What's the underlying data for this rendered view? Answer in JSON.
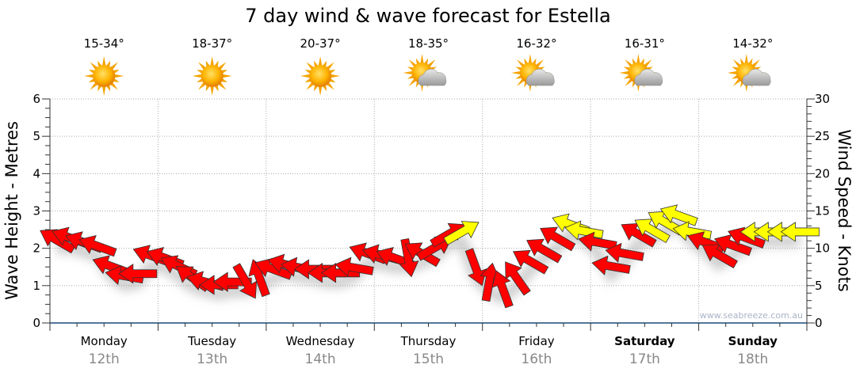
{
  "chart_data": {
    "type": "scatter",
    "title": "7 day wind & wave forecast for Estella",
    "ylabel_left": "Wave Height - Metres",
    "ylabel_right": "Wind Speed - Knots",
    "ylim_left": [
      0,
      6
    ],
    "ylim_right": [
      0,
      30
    ],
    "left_ticks": [
      "0",
      "1",
      "2",
      "3",
      "4",
      "5",
      "6"
    ],
    "right_ticks": [
      "0",
      "5",
      "10",
      "15",
      "20",
      "25",
      "30"
    ],
    "grid": true,
    "days": [
      {
        "day": "Monday",
        "date": "12th",
        "temp": "15-34°",
        "icon": "sunny-icon",
        "bold": false
      },
      {
        "day": "Tuesday",
        "date": "13th",
        "temp": "18-37°",
        "icon": "sunny-icon",
        "bold": false
      },
      {
        "day": "Wednesday",
        "date": "14th",
        "temp": "20-37°",
        "icon": "sunny-icon",
        "bold": false
      },
      {
        "day": "Thursday",
        "date": "15th",
        "temp": "18-35°",
        "icon": "partly-cloudy-icon",
        "bold": false
      },
      {
        "day": "Friday",
        "date": "16th",
        "temp": "16-32°",
        "icon": "partly-cloudy-icon",
        "bold": false
      },
      {
        "day": "Saturday",
        "date": "17th",
        "temp": "16-31°",
        "icon": "partly-cloudy-icon",
        "bold": true
      },
      {
        "day": "Sunday",
        "date": "18th",
        "temp": "14-32°",
        "icon": "partly-cloudy-icon",
        "bold": true
      }
    ],
    "wind_series": {
      "name": "Wind speed (knots) every 3 hours, arrow pointing direction in compass degrees",
      "speed_knots": [
        11.1,
        11.4,
        10.8,
        10.3,
        7.6,
        6.3,
        6.6,
        9.0,
        8.7,
        7.6,
        6.1,
        5.5,
        5.1,
        5.5,
        5.5,
        6.1,
        7.2,
        7.8,
        7.4,
        7.2,
        6.7,
        6.7,
        7.4,
        9.3,
        9.1,
        8.7,
        8.7,
        9.3,
        10.1,
        11.9,
        12.2,
        7.4,
        5.5,
        4.6,
        6.1,
        8.3,
        9.8,
        11.4,
        13.2,
        12.3,
        10.8,
        7.6,
        9.3,
        11.9,
        12.5,
        13.5,
        14.4,
        12.2,
        10.8,
        9.1,
        10.4,
        11.4,
        12.2,
        12.2,
        12.2,
        12.2
      ],
      "direction_deg": [
        300,
        290,
        290,
        290,
        290,
        280,
        270,
        290,
        290,
        295,
        305,
        285,
        270,
        270,
        150,
        340,
        290,
        285,
        280,
        270,
        270,
        270,
        280,
        290,
        285,
        290,
        170,
        300,
        60,
        60,
        60,
        160,
        10,
        340,
        325,
        300,
        300,
        300,
        290,
        280,
        280,
        280,
        280,
        300,
        300,
        300,
        290,
        280,
        290,
        300,
        290,
        290,
        270,
        270,
        270,
        270
      ],
      "threshold_yellow_knots": 12,
      "colors": {
        "strong": "#ffff00",
        "normal": "#ff0000",
        "outline": "#333333"
      }
    },
    "watermark": "www.seabreeze.com.au"
  }
}
